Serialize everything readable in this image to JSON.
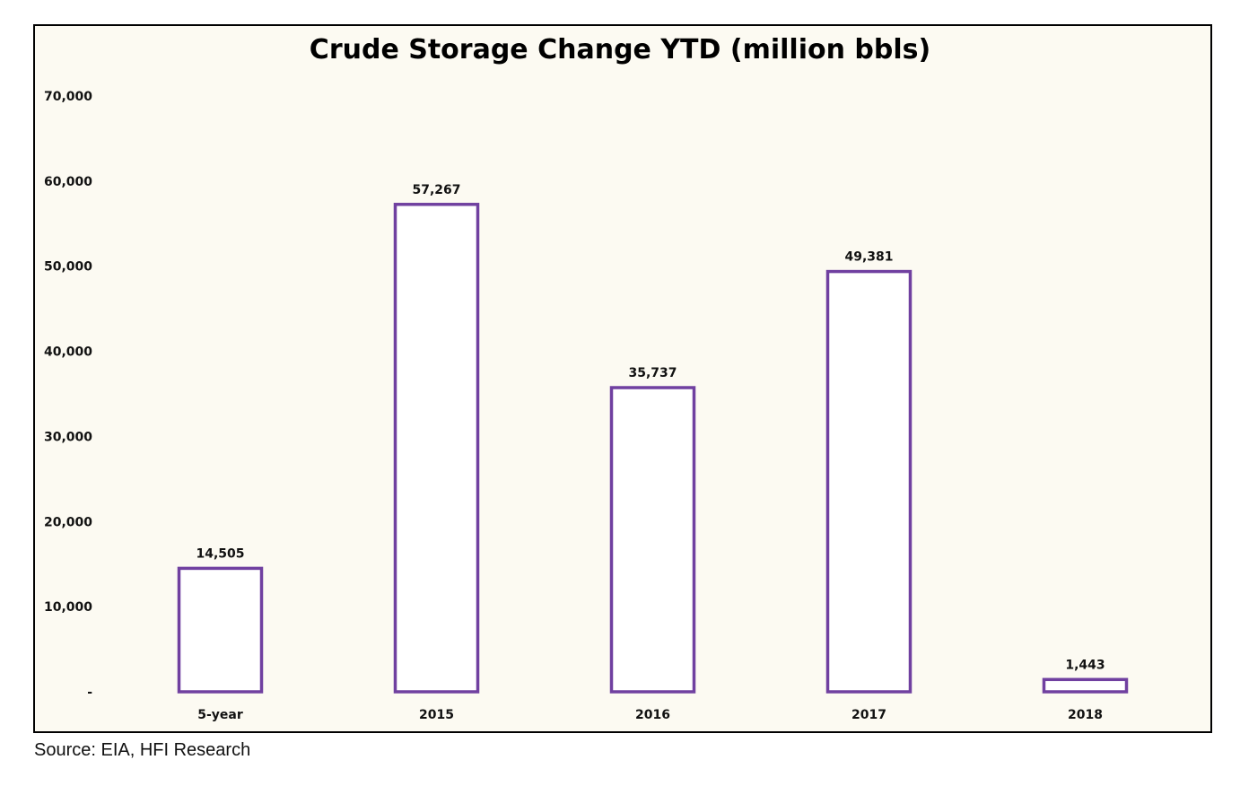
{
  "chart_data": {
    "type": "bar",
    "title": "Crude Storage Change YTD (million bbls)",
    "categories": [
      "5-year",
      "2015",
      "2016",
      "2017",
      "2018"
    ],
    "values": [
      14505,
      57267,
      35737,
      49381,
      1443
    ],
    "data_labels": [
      "14,505",
      "57,267",
      "35,737",
      "49,381",
      "1,443"
    ],
    "ylim": [
      0,
      70000
    ],
    "yticks": [
      0,
      10000,
      20000,
      30000,
      40000,
      50000,
      60000,
      70000
    ],
    "ytick_labels": [
      "-",
      "10,000",
      "20,000",
      "30,000",
      "40,000",
      "50,000",
      "60,000",
      "70,000"
    ],
    "xlabel": "",
    "ylabel": "",
    "grid": false,
    "legend": "none",
    "colors": {
      "bar_outline": "#7040a0",
      "bar_fill": "#ffffff",
      "background": "#fcfaf2"
    }
  },
  "source": "Source: EIA, HFI Research"
}
